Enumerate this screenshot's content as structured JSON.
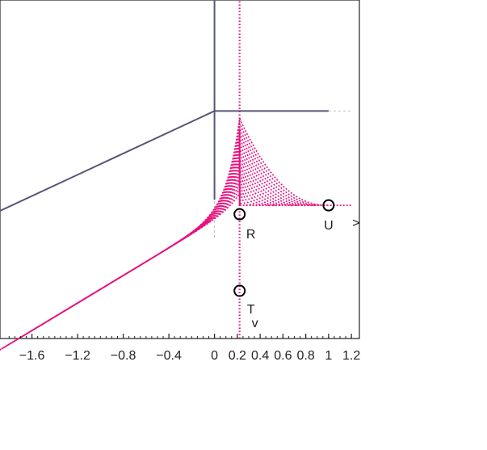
{
  "colors": {
    "frame": "#222222",
    "curve": "#e8117f",
    "axis_line": "#e8117f",
    "boundary": "#555577",
    "extension": "#bbbbbb",
    "marker": "#000000"
  },
  "chart_data": {
    "type": "scatter",
    "title": "",
    "xlabel": "",
    "ylabel": "",
    "xlim": [
      -1.88,
      1.27
    ],
    "ylim": [
      -1.15,
      1.9
    ],
    "grid": false,
    "x_tick_labels": [
      {
        "x": -1.6,
        "label": "−1.6"
      },
      {
        "x": -1.2,
        "label": "−1.2"
      },
      {
        "x": -0.8,
        "label": "−0.8"
      },
      {
        "x": -0.4,
        "label": "−0.4"
      },
      {
        "x": 0,
        "label": "0"
      },
      {
        "x": 0.2,
        "label": "0.2"
      },
      {
        "x": 0.4,
        "label": "0.4"
      },
      {
        "x": 0.6,
        "label": "0.6"
      },
      {
        "x": 0.8,
        "label": "0.8"
      },
      {
        "x": 1,
        "label": "1"
      },
      {
        "x": 1.2,
        "label": "1.2"
      }
    ],
    "boundary": [
      {
        "x": -1.88,
        "y": 0
      },
      {
        "x": 0,
        "y": 0.9
      },
      {
        "x": 1.0,
        "y": 0.9
      }
    ],
    "boundary_extension": [
      {
        "x": 1.0,
        "y": 0.9
      },
      {
        "x": 1.2,
        "y": 0.9
      }
    ],
    "vertical_line": {
      "x": 0,
      "y_from": 0.1,
      "y_to": 1.9
    },
    "vertical_line_extension": {
      "x": 0,
      "y_from": -0.24,
      "y_to": 0.1
    },
    "dotted_axis": {
      "x": 0.22,
      "y_from": -1.15,
      "y_to": 1.9
    },
    "points": [
      {
        "label": "R",
        "x": 0.22,
        "y": -0.03
      },
      {
        "label": "U",
        "x": 1.0,
        "y": 0.05
      },
      {
        "label": "T",
        "x": 0.22,
        "y": -0.72
      }
    ],
    "arrow_labels": [
      {
        "label": ">"
      },
      {
        "label": "v"
      }
    ]
  }
}
